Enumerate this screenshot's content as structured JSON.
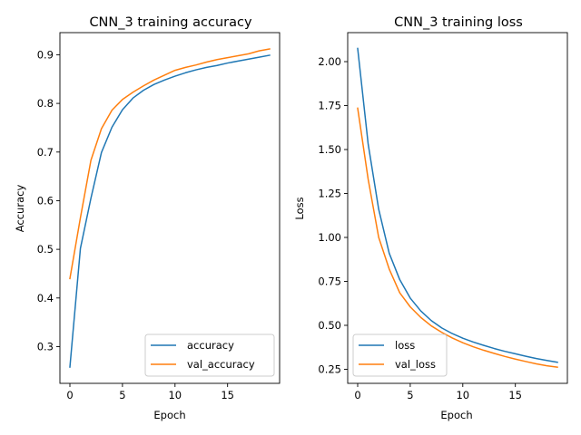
{
  "colors": {
    "accent_blue": "#1f77b4",
    "accent_orange": "#ff7f0e"
  },
  "chart_data": [
    {
      "type": "line",
      "title": "CNN_3 training accuracy",
      "xlabel": "Epoch",
      "ylabel": "Accuracy",
      "xlim": [
        -0.95,
        19.95
      ],
      "ylim": [
        0.2245,
        0.9455
      ],
      "xticks": [
        0,
        5,
        10,
        15
      ],
      "yticks": [
        0.3,
        0.4,
        0.5,
        0.6,
        0.7,
        0.8,
        0.9
      ],
      "legend_position": "lower-right",
      "grid": false,
      "x": [
        0,
        1,
        2,
        3,
        4,
        5,
        6,
        7,
        8,
        9,
        10,
        11,
        12,
        13,
        14,
        15,
        16,
        17,
        18,
        19
      ],
      "series": [
        {
          "name": "accuracy",
          "color": "#1f77b4",
          "values": [
            0.258,
            0.502,
            0.605,
            0.699,
            0.751,
            0.787,
            0.811,
            0.827,
            0.839,
            0.848,
            0.856,
            0.863,
            0.869,
            0.874,
            0.878,
            0.883,
            0.887,
            0.891,
            0.895,
            0.899
          ]
        },
        {
          "name": "val_accuracy",
          "color": "#ff7f0e",
          "values": [
            0.44,
            0.565,
            0.683,
            0.748,
            0.786,
            0.808,
            0.823,
            0.836,
            0.848,
            0.858,
            0.868,
            0.874,
            0.879,
            0.885,
            0.89,
            0.894,
            0.898,
            0.902,
            0.908,
            0.912
          ]
        }
      ]
    },
    {
      "type": "line",
      "title": "CNN_3 training loss",
      "xlabel": "Epoch",
      "ylabel": "Loss",
      "xlim": [
        -0.95,
        19.95
      ],
      "ylim": [
        0.17,
        2.165
      ],
      "xticks": [
        0,
        5,
        10,
        15
      ],
      "yticks": [
        0.25,
        0.5,
        0.75,
        1.0,
        1.25,
        1.5,
        1.75,
        2.0
      ],
      "ytick_labels": [
        "0.25",
        "0.50",
        "0.75",
        "1.00",
        "1.25",
        "1.50",
        "1.75",
        "2.00"
      ],
      "legend_position": "lower-left",
      "grid": false,
      "x": [
        0,
        1,
        2,
        3,
        4,
        5,
        6,
        7,
        8,
        9,
        10,
        11,
        12,
        13,
        14,
        15,
        16,
        17,
        18,
        19
      ],
      "series": [
        {
          "name": "loss",
          "color": "#1f77b4",
          "values": [
            2.075,
            1.53,
            1.16,
            0.91,
            0.76,
            0.655,
            0.582,
            0.527,
            0.485,
            0.453,
            0.427,
            0.405,
            0.386,
            0.368,
            0.352,
            0.338,
            0.324,
            0.311,
            0.3,
            0.29
          ]
        },
        {
          "name": "val_loss",
          "color": "#ff7f0e",
          "values": [
            1.735,
            1.33,
            1.0,
            0.82,
            0.685,
            0.605,
            0.545,
            0.497,
            0.46,
            0.428,
            0.401,
            0.378,
            0.358,
            0.34,
            0.323,
            0.308,
            0.294,
            0.281,
            0.27,
            0.262
          ]
        }
      ]
    }
  ]
}
